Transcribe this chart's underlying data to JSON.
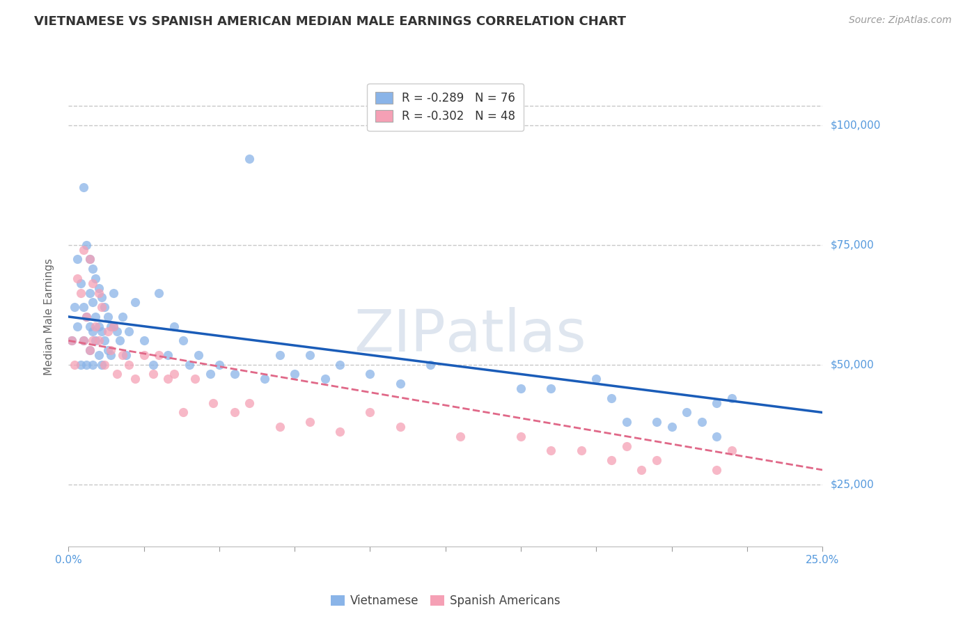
{
  "title": "VIETNAMESE VS SPANISH AMERICAN MEDIAN MALE EARNINGS CORRELATION CHART",
  "source": "Source: ZipAtlas.com",
  "ylabel": "Median Male Earnings",
  "watermark_zip": "ZIP",
  "watermark_atlas": "atlas",
  "legend_line1_r": "R = -0.289",
  "legend_line1_n": "N = 76",
  "legend_line2_r": "R = -0.302",
  "legend_line2_n": "N = 48",
  "xmin": 0.0,
  "xmax": 0.25,
  "ymin": 12000,
  "ymax": 108000,
  "yticks": [
    25000,
    50000,
    75000,
    100000
  ],
  "ytick_labels": [
    "$25,000",
    "$50,000",
    "$75,000",
    "$100,000"
  ],
  "xticks": [
    0.0,
    0.025,
    0.05,
    0.075,
    0.1,
    0.125,
    0.15,
    0.175,
    0.2,
    0.225,
    0.25
  ],
  "xtick_labels_sparse": [
    "0.0%",
    "",
    "",
    "",
    "",
    "",
    "",
    "",
    "",
    "",
    "25.0%"
  ],
  "viet_color": "#8ab4e8",
  "span_color": "#f5a0b5",
  "line_viet_color": "#1a5cb8",
  "line_span_color": "#e06888",
  "bg_color": "#ffffff",
  "title_color": "#333333",
  "axis_tick_color": "#5599dd",
  "grid_color": "#c8c8c8",
  "ylabel_color": "#666666",
  "watermark_color": "#ccd8e8",
  "viet_scatter_x": [
    0.001,
    0.002,
    0.003,
    0.003,
    0.004,
    0.004,
    0.005,
    0.005,
    0.005,
    0.006,
    0.006,
    0.006,
    0.007,
    0.007,
    0.007,
    0.007,
    0.008,
    0.008,
    0.008,
    0.008,
    0.009,
    0.009,
    0.009,
    0.01,
    0.01,
    0.01,
    0.011,
    0.011,
    0.011,
    0.012,
    0.012,
    0.013,
    0.013,
    0.014,
    0.014,
    0.015,
    0.015,
    0.016,
    0.017,
    0.018,
    0.019,
    0.02,
    0.022,
    0.025,
    0.028,
    0.03,
    0.033,
    0.035,
    0.038,
    0.04,
    0.043,
    0.047,
    0.05,
    0.055,
    0.06,
    0.065,
    0.07,
    0.075,
    0.08,
    0.085,
    0.09,
    0.1,
    0.11,
    0.12,
    0.15,
    0.16,
    0.175,
    0.18,
    0.185,
    0.195,
    0.2,
    0.205,
    0.21,
    0.215,
    0.215,
    0.22
  ],
  "viet_scatter_y": [
    55000,
    62000,
    58000,
    72000,
    50000,
    67000,
    87000,
    62000,
    55000,
    75000,
    60000,
    50000,
    72000,
    65000,
    58000,
    53000,
    70000,
    63000,
    57000,
    50000,
    68000,
    60000,
    55000,
    66000,
    58000,
    52000,
    64000,
    57000,
    50000,
    62000,
    55000,
    60000,
    53000,
    58000,
    52000,
    65000,
    58000,
    57000,
    55000,
    60000,
    52000,
    57000,
    63000,
    55000,
    50000,
    65000,
    52000,
    58000,
    55000,
    50000,
    52000,
    48000,
    50000,
    48000,
    93000,
    47000,
    52000,
    48000,
    52000,
    47000,
    50000,
    48000,
    46000,
    50000,
    45000,
    45000,
    47000,
    43000,
    38000,
    38000,
    37000,
    40000,
    38000,
    42000,
    35000,
    43000
  ],
  "span_scatter_x": [
    0.001,
    0.002,
    0.003,
    0.004,
    0.005,
    0.005,
    0.006,
    0.007,
    0.007,
    0.008,
    0.008,
    0.009,
    0.01,
    0.01,
    0.011,
    0.012,
    0.013,
    0.014,
    0.015,
    0.016,
    0.018,
    0.02,
    0.022,
    0.025,
    0.028,
    0.03,
    0.033,
    0.035,
    0.038,
    0.042,
    0.048,
    0.055,
    0.06,
    0.07,
    0.08,
    0.09,
    0.1,
    0.11,
    0.13,
    0.15,
    0.16,
    0.17,
    0.18,
    0.185,
    0.19,
    0.195,
    0.215,
    0.22
  ],
  "span_scatter_y": [
    55000,
    50000,
    68000,
    65000,
    74000,
    55000,
    60000,
    72000,
    53000,
    67000,
    55000,
    58000,
    65000,
    55000,
    62000,
    50000,
    57000,
    53000,
    58000,
    48000,
    52000,
    50000,
    47000,
    52000,
    48000,
    52000,
    47000,
    48000,
    40000,
    47000,
    42000,
    40000,
    42000,
    37000,
    38000,
    36000,
    40000,
    37000,
    35000,
    35000,
    32000,
    32000,
    30000,
    33000,
    28000,
    30000,
    28000,
    32000
  ],
  "viet_line_x0": 0.0,
  "viet_line_x1": 0.25,
  "viet_line_y0": 60000,
  "viet_line_y1": 40000,
  "span_line_x0": 0.0,
  "span_line_x1": 0.25,
  "span_line_y0": 55000,
  "span_line_y1": 28000
}
